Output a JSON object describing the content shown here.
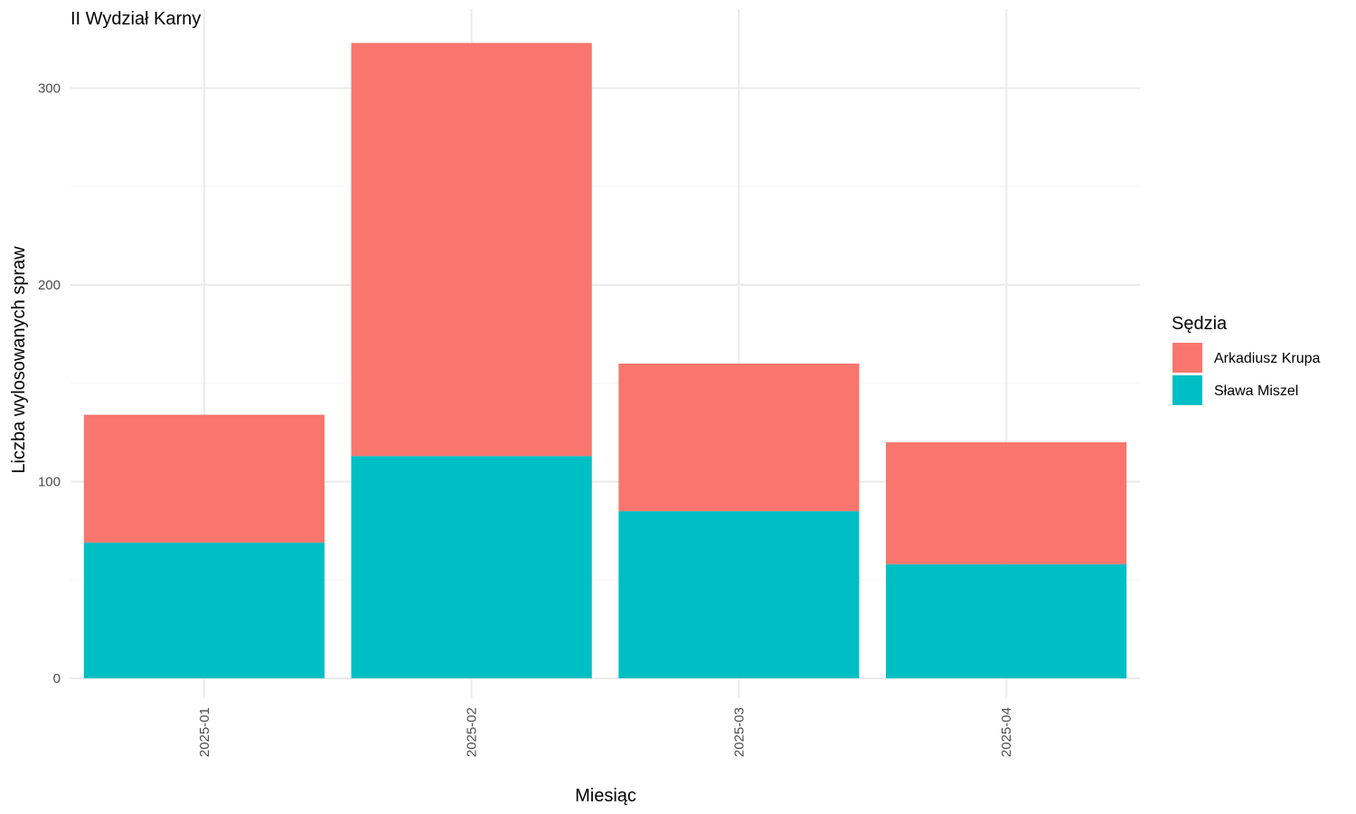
{
  "chart_data": {
    "type": "bar",
    "stacked": true,
    "title": "II Wydział Karny",
    "xlabel": "Miesiąc",
    "ylabel": "Liczba wylosowanych spraw",
    "categories": [
      "2025-01",
      "2025-02",
      "2025-03",
      "2025-04"
    ],
    "series": [
      {
        "name": "Sława Miszel",
        "color": "#00BFC4",
        "values": [
          69,
          113,
          85,
          58
        ]
      },
      {
        "name": "Arkadiusz Krupa",
        "color": "#F8766D",
        "values": [
          65,
          210,
          75,
          62
        ]
      }
    ],
    "ylim": [
      0,
      325
    ],
    "yticks": [
      0,
      100,
      200,
      300
    ],
    "grid": true,
    "legend": {
      "title": "Sędzia",
      "position": "right",
      "order": [
        "Arkadiusz Krupa",
        "Sława Miszel"
      ]
    }
  }
}
